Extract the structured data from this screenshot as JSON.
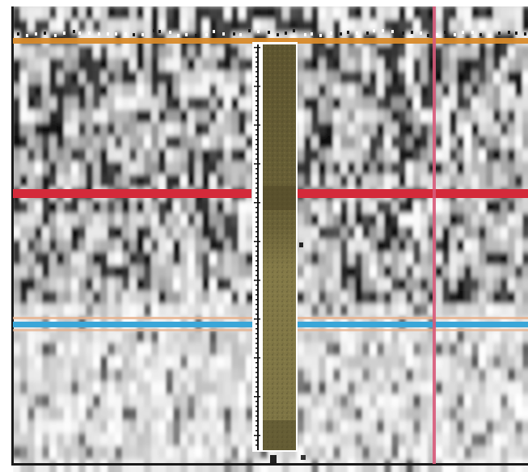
{
  "figure": {
    "kind": "ground-penetrating radar profile with sediment core overlay",
    "colors": {
      "background": "#ffffff",
      "frame": "#1a1a1a",
      "horizon_top": "#d88a2a",
      "horizon_middle": "#d42a3a",
      "horizon_bottom": "#3aa6d8",
      "horizon_bottom_halo": "#e8b08a",
      "vertical_marker": "#d85a7a",
      "core_sediment": "#6b6238",
      "core_sediment_light": "#8a7f4a",
      "ruler": "#ffffff",
      "ruler_ticks": "#111111"
    }
  }
}
